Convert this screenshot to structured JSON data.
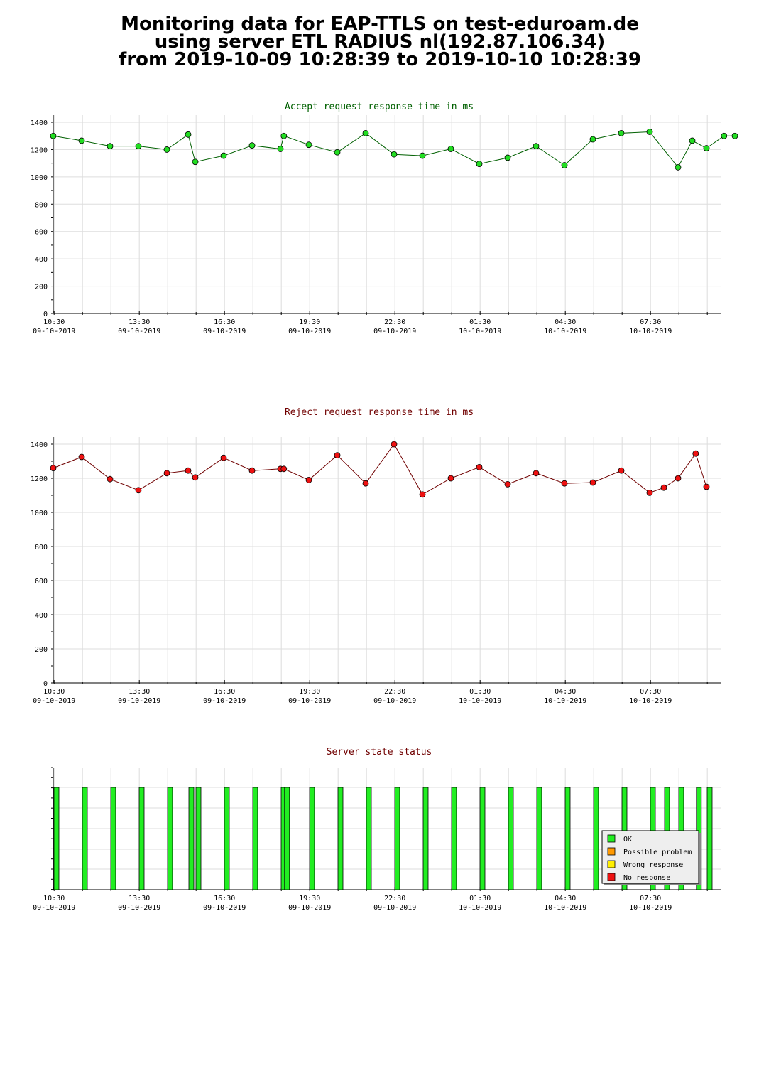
{
  "title": {
    "line1": "Monitoring data for EAP-TTLS on test-eduroam.de",
    "line2": "using server ETL RADIUS nl(192.87.106.34)",
    "line3": "from 2019-10-09 10:28:39 to 2019-10-10 10:28:39"
  },
  "colors": {
    "accept_line": "#006000",
    "accept_marker": "#22dd22",
    "reject_line": "#700000",
    "reject_marker": "#ee1111",
    "accept_title": "#006000",
    "reject_title": "#700000",
    "status_title": "#700000",
    "grid": "#dddddd",
    "ok": "#22ee22",
    "possible_problem": "#ff9900",
    "wrong_response": "#ffee00",
    "no_response": "#ee1111"
  },
  "x_tick_labels": [
    {
      "time": "10:30",
      "date": "09-10-2019"
    },
    {
      "time": "13:30",
      "date": "09-10-2019"
    },
    {
      "time": "16:30",
      "date": "09-10-2019"
    },
    {
      "time": "19:30",
      "date": "09-10-2019"
    },
    {
      "time": "22:30",
      "date": "09-10-2019"
    },
    {
      "time": "01:30",
      "date": "10-10-2019"
    },
    {
      "time": "04:30",
      "date": "10-10-2019"
    },
    {
      "time": "07:30",
      "date": "10-10-2019"
    }
  ],
  "chart_data": [
    {
      "type": "line",
      "title": "Accept request response time in ms",
      "x_unit": "hours from 2019-10-09 10:28:39",
      "ylim": [
        0,
        1400
      ],
      "y_ticks": [
        "0",
        "200",
        "400",
        "600",
        "800",
        "1000",
        "1200",
        "1400"
      ],
      "x": [
        0,
        1,
        2,
        3,
        4,
        4.75,
        5,
        6,
        7,
        8,
        8.12,
        9,
        10,
        11,
        12,
        13,
        14,
        15,
        16,
        17,
        18,
        19,
        20,
        21,
        22,
        22.5,
        23,
        23.62,
        24
      ],
      "values": [
        1300,
        1265,
        1225,
        1225,
        1200,
        1310,
        1110,
        1155,
        1230,
        1205,
        1300,
        1235,
        1180,
        1320,
        1165,
        1155,
        1205,
        1095,
        1140,
        1225,
        1085,
        1275,
        1320,
        1330,
        1070,
        1265,
        1210,
        1300,
        1300
      ],
      "grid": true
    },
    {
      "type": "line",
      "title": "Reject request response time in ms",
      "x_unit": "hours from 2019-10-09 10:28:39",
      "ylim": [
        0,
        1400
      ],
      "y_ticks": [
        "0",
        "200",
        "400",
        "600",
        "800",
        "1000",
        "1200",
        "1400"
      ],
      "x": [
        0,
        1,
        2,
        3,
        4,
        4.75,
        5,
        6,
        7,
        8,
        8.12,
        9,
        10,
        11,
        12,
        13,
        14,
        15,
        16,
        17,
        18,
        19,
        20,
        21,
        21.5,
        22,
        22.62,
        23
      ],
      "values": [
        1260,
        1325,
        1195,
        1130,
        1230,
        1245,
        1205,
        1320,
        1245,
        1255,
        1255,
        1190,
        1335,
        1170,
        1400,
        1105,
        1200,
        1265,
        1165,
        1230,
        1170,
        1175,
        1245,
        1115,
        1145,
        1200,
        1345,
        1150
      ],
      "grid": true
    },
    {
      "type": "bar",
      "title": "Server state status",
      "x_unit": "hours from 2019-10-09 10:28:39",
      "x": [
        0,
        1,
        2,
        3,
        4,
        4.75,
        5,
        6,
        7,
        8,
        8.12,
        9,
        10,
        11,
        12,
        13,
        14,
        15,
        16,
        17,
        18,
        19,
        20,
        21,
        21.5,
        22,
        22.62,
        23
      ],
      "states": [
        "OK",
        "OK",
        "OK",
        "OK",
        "OK",
        "OK",
        "OK",
        "OK",
        "OK",
        "OK",
        "OK",
        "OK",
        "OK",
        "OK",
        "OK",
        "OK",
        "OK",
        "OK",
        "OK",
        "OK",
        "OK",
        "OK",
        "OK",
        "OK",
        "OK",
        "OK",
        "OK",
        "OK"
      ],
      "legend": [
        "OK",
        "Possible problem",
        "Wrong response",
        "No response"
      ],
      "legend_placement": "bottom-right"
    }
  ]
}
